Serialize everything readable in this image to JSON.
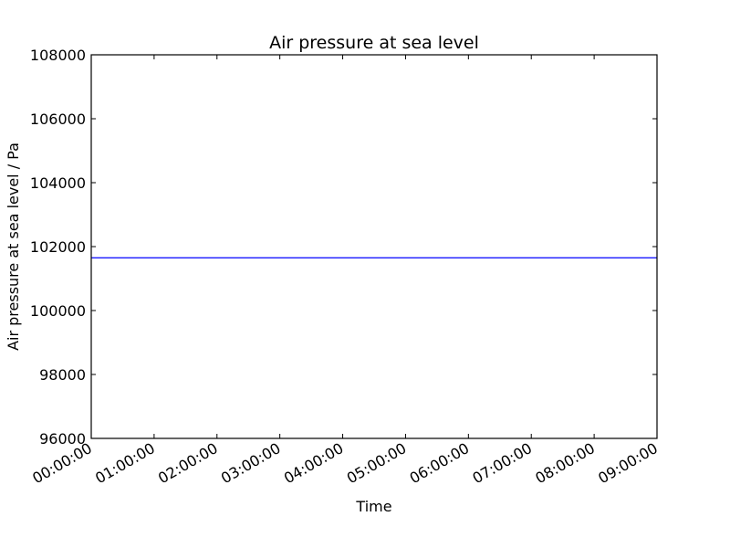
{
  "chart_data": {
    "type": "line",
    "title": "Air pressure at sea level",
    "xlabel": "Time",
    "ylabel": "Air pressure at sea level / Pa",
    "x_unit": "hours",
    "xlim": [
      0,
      9
    ],
    "ylim": [
      96000,
      108000
    ],
    "x_ticks": [
      {
        "value": 0,
        "label": "00:00:00"
      },
      {
        "value": 1,
        "label": "01:00:00"
      },
      {
        "value": 2,
        "label": "02:00:00"
      },
      {
        "value": 3,
        "label": "03:00:00"
      },
      {
        "value": 4,
        "label": "04:00:00"
      },
      {
        "value": 5,
        "label": "05:00:00"
      },
      {
        "value": 6,
        "label": "06:00:00"
      },
      {
        "value": 7,
        "label": "07:00:00"
      },
      {
        "value": 8,
        "label": "08:00:00"
      },
      {
        "value": 9,
        "label": "09:00:00"
      }
    ],
    "y_ticks": [
      96000,
      98000,
      100000,
      102000,
      104000,
      106000,
      108000
    ],
    "grid": false,
    "series": [
      {
        "color": "#0000ff",
        "x": [
          0,
          1,
          2,
          3,
          4,
          5,
          6,
          7,
          8,
          9
        ],
        "y": [
          101650,
          101650,
          101650,
          101650,
          101650,
          101650,
          101650,
          101650,
          101650,
          101650
        ]
      }
    ]
  }
}
